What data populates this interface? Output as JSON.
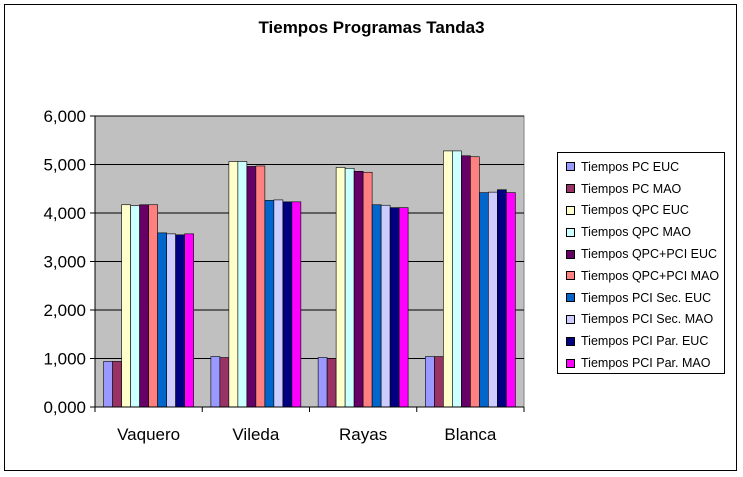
{
  "chart_data": {
    "type": "bar",
    "title": "Tiempos Programas Tanda3",
    "xlabel": "",
    "ylabel": "",
    "ylim": [
      0,
      6
    ],
    "yticks": [
      "0,000",
      "1,000",
      "2,000",
      "3,000",
      "4,000",
      "5,000",
      "6,000"
    ],
    "grid": true,
    "legend_position": "right",
    "plot_background": "#c0c0c0",
    "categories": [
      "Vaquero",
      "Vileda",
      "Rayas",
      "Blanca"
    ],
    "series": [
      {
        "name": "Tiempos PC EUC",
        "color": "#9999ff",
        "values": [
          0.94,
          1.04,
          1.02,
          1.04
        ]
      },
      {
        "name": "Tiempos PC MAO",
        "color": "#993366",
        "values": [
          0.94,
          1.02,
          1.0,
          1.04
        ]
      },
      {
        "name": "Tiempos QPC EUC",
        "color": "#ffffcc",
        "values": [
          4.17,
          5.06,
          4.94,
          5.28
        ]
      },
      {
        "name": "Tiempos QPC MAO",
        "color": "#ccffff",
        "values": [
          4.15,
          5.06,
          4.92,
          5.28
        ]
      },
      {
        "name": "Tiempos QPC+PCI EUC",
        "color": "#660066",
        "values": [
          4.17,
          4.96,
          4.86,
          5.18
        ]
      },
      {
        "name": "Tiempos QPC+PCI MAO",
        "color": "#ff8080",
        "values": [
          4.17,
          4.97,
          4.84,
          5.16
        ]
      },
      {
        "name": "Tiempos PCI Sec. EUC",
        "color": "#0066cc",
        "values": [
          3.59,
          4.26,
          4.17,
          4.42
        ]
      },
      {
        "name": "Tiempos PCI Sec. MAO",
        "color": "#ccccff",
        "values": [
          3.57,
          4.27,
          4.16,
          4.43
        ]
      },
      {
        "name": "Tiempos PCI Par. EUC",
        "color": "#000080",
        "values": [
          3.55,
          4.23,
          4.11,
          4.48
        ]
      },
      {
        "name": "Tiempos PCI Par. MAO",
        "color": "#ff00ff",
        "values": [
          3.57,
          4.23,
          4.11,
          4.42
        ]
      }
    ]
  }
}
